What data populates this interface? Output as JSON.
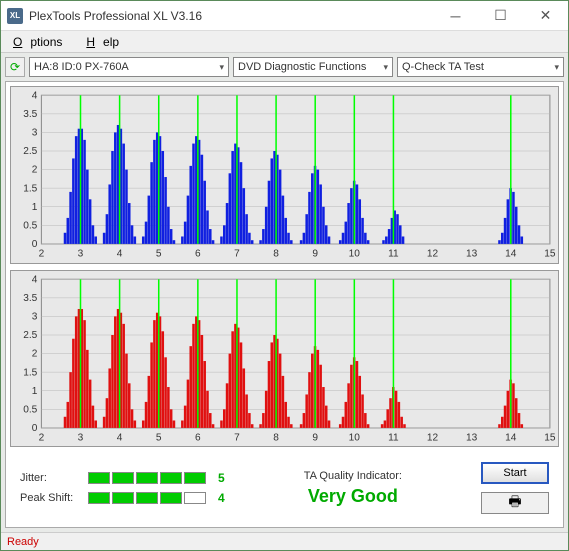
{
  "window": {
    "title": "PlexTools Professional XL V3.16",
    "icon_text": "XL"
  },
  "menu": {
    "options": "Options",
    "help": "Help"
  },
  "toolbar": {
    "drive": "HA:8 ID:0   PX-760A",
    "mode": "DVD Diagnostic Functions",
    "test": "Q-Check TA Test"
  },
  "chart_top": {
    "type": "bar-cluster",
    "ylim": [
      0,
      4
    ],
    "ytick_step": 0.5,
    "xlim": [
      2,
      15
    ],
    "xtick_step": 1,
    "bar_color": "#1020e0",
    "marker_color": "#00ff00",
    "bg_color": "#e8e8e8",
    "grid_color": "#b8b8b8",
    "series": [
      {
        "center": 3,
        "bars": [
          0.3,
          0.7,
          1.4,
          2.3,
          2.9,
          3.1,
          3.1,
          2.8,
          2.0,
          1.2,
          0.5,
          0.2
        ]
      },
      {
        "center": 4,
        "bars": [
          0.3,
          0.8,
          1.6,
          2.5,
          3.0,
          3.2,
          3.1,
          2.7,
          2.0,
          1.1,
          0.5,
          0.2
        ]
      },
      {
        "center": 5,
        "bars": [
          0.2,
          0.6,
          1.3,
          2.2,
          2.8,
          3.0,
          2.9,
          2.5,
          1.8,
          1.0,
          0.4,
          0.1
        ]
      },
      {
        "center": 6,
        "bars": [
          0.2,
          0.6,
          1.3,
          2.1,
          2.7,
          2.9,
          2.8,
          2.4,
          1.7,
          0.9,
          0.4,
          0.1
        ]
      },
      {
        "center": 7,
        "bars": [
          0.2,
          0.5,
          1.1,
          1.9,
          2.5,
          2.7,
          2.6,
          2.2,
          1.5,
          0.8,
          0.3,
          0.1
        ]
      },
      {
        "center": 8,
        "bars": [
          0.1,
          0.4,
          1.0,
          1.7,
          2.3,
          2.5,
          2.4,
          2.0,
          1.3,
          0.7,
          0.3,
          0.1
        ]
      },
      {
        "center": 9,
        "bars": [
          0.1,
          0.3,
          0.8,
          1.4,
          1.9,
          2.1,
          2.0,
          1.6,
          1.0,
          0.5,
          0.2
        ]
      },
      {
        "center": 10,
        "bars": [
          0.1,
          0.3,
          0.6,
          1.1,
          1.5,
          1.7,
          1.6,
          1.2,
          0.7,
          0.3,
          0.1
        ]
      },
      {
        "center": 11,
        "bars": [
          0.1,
          0.2,
          0.4,
          0.7,
          0.9,
          0.8,
          0.5,
          0.2
        ]
      },
      {
        "center": 14,
        "bars": [
          0.1,
          0.3,
          0.7,
          1.2,
          1.5,
          1.4,
          1.0,
          0.5,
          0.2
        ]
      }
    ]
  },
  "chart_bottom": {
    "type": "bar-cluster",
    "ylim": [
      0,
      4
    ],
    "ytick_step": 0.5,
    "xlim": [
      2,
      15
    ],
    "xtick_step": 1,
    "bar_color": "#e01010",
    "marker_color": "#00ff00",
    "bg_color": "#e8e8e8",
    "grid_color": "#b8b8b8",
    "series": [
      {
        "center": 3,
        "bars": [
          0.3,
          0.7,
          1.5,
          2.4,
          3.0,
          3.2,
          3.2,
          2.9,
          2.1,
          1.3,
          0.6,
          0.2
        ]
      },
      {
        "center": 4,
        "bars": [
          0.3,
          0.8,
          1.6,
          2.5,
          3.0,
          3.2,
          3.1,
          2.8,
          2.0,
          1.2,
          0.5,
          0.2
        ]
      },
      {
        "center": 5,
        "bars": [
          0.2,
          0.7,
          1.4,
          2.3,
          2.9,
          3.1,
          3.0,
          2.6,
          1.9,
          1.1,
          0.5,
          0.2
        ]
      },
      {
        "center": 6,
        "bars": [
          0.2,
          0.6,
          1.3,
          2.2,
          2.8,
          3.0,
          2.9,
          2.5,
          1.8,
          1.0,
          0.4,
          0.1
        ]
      },
      {
        "center": 7,
        "bars": [
          0.2,
          0.5,
          1.2,
          2.0,
          2.6,
          2.8,
          2.7,
          2.3,
          1.6,
          0.9,
          0.4,
          0.1
        ]
      },
      {
        "center": 8,
        "bars": [
          0.1,
          0.4,
          1.0,
          1.8,
          2.3,
          2.5,
          2.4,
          2.0,
          1.4,
          0.7,
          0.3,
          0.1
        ]
      },
      {
        "center": 9,
        "bars": [
          0.1,
          0.4,
          0.9,
          1.5,
          2.0,
          2.2,
          2.1,
          1.7,
          1.1,
          0.6,
          0.2
        ]
      },
      {
        "center": 10,
        "bars": [
          0.1,
          0.3,
          0.7,
          1.2,
          1.7,
          1.9,
          1.8,
          1.4,
          0.9,
          0.4,
          0.1
        ]
      },
      {
        "center": 11,
        "bars": [
          0.1,
          0.2,
          0.5,
          0.8,
          1.1,
          1.0,
          0.7,
          0.3,
          0.1
        ]
      },
      {
        "center": 14,
        "bars": [
          0.1,
          0.3,
          0.6,
          1.0,
          1.3,
          1.2,
          0.8,
          0.4,
          0.1
        ]
      }
    ]
  },
  "quality": {
    "jitter_label": "Jitter:",
    "jitter_value": "5",
    "jitter_filled": 5,
    "peak_label": "Peak Shift:",
    "peak_value": "4",
    "peak_filled": 4,
    "qi_label": "TA Quality Indicator:",
    "qi_value": "Very Good",
    "start_label": "Start"
  },
  "status": {
    "text": "Ready"
  }
}
